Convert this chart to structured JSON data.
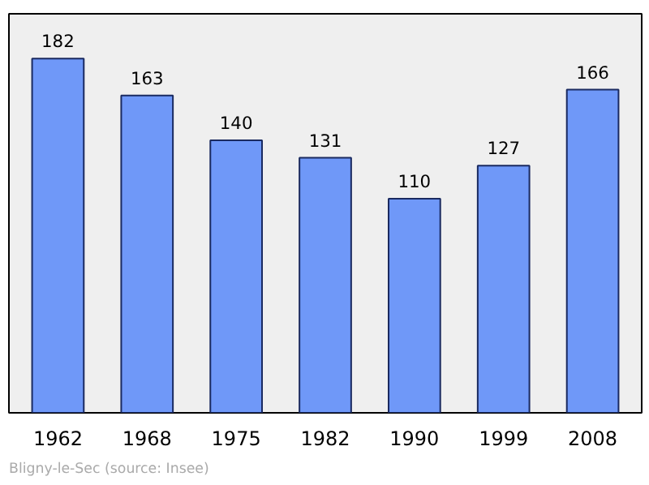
{
  "chart_data": {
    "type": "bar",
    "categories": [
      "1962",
      "1968",
      "1975",
      "1982",
      "1990",
      "1999",
      "2008"
    ],
    "values": [
      182,
      163,
      140,
      131,
      110,
      127,
      166
    ],
    "color": "#6f98f8",
    "data_labels": true,
    "ylim": [
      0,
      205
    ],
    "grid": false,
    "annotations": [
      "Bligny-le-Sec   (source: Insee)"
    ]
  }
}
